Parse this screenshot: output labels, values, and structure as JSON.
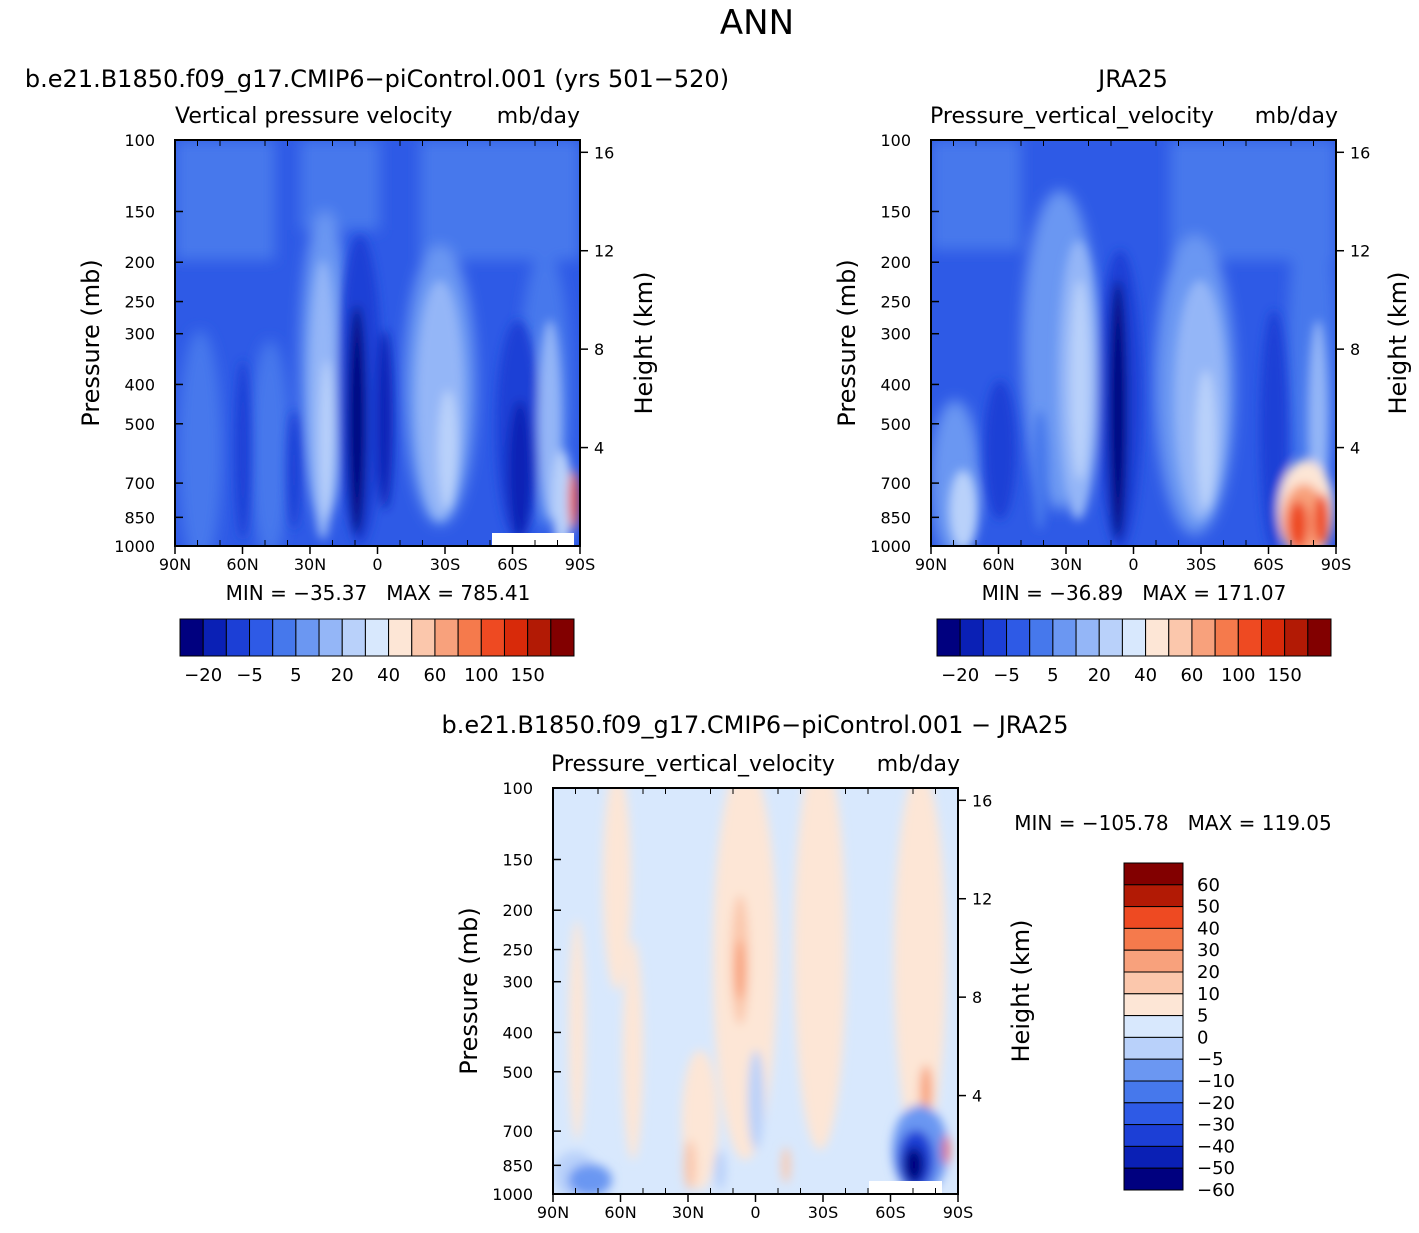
{
  "figure": {
    "title": "ANN",
    "palette_abs": [
      "#00007f",
      "#0a20b5",
      "#1c3fd6",
      "#2e5ae6",
      "#4678ec",
      "#6b97f2",
      "#94b6f7",
      "#b9d1fa",
      "#d8e8fd",
      "#fde6d6",
      "#fbc7ac",
      "#f8a17c",
      "#f57a4c",
      "#ee4a22",
      "#d82a0a",
      "#b21a05",
      "#820000"
    ],
    "palette_diff": [
      "#00007f",
      "#0a20b5",
      "#1c3fd6",
      "#2e5ae6",
      "#4678ec",
      "#6b97f2",
      "#b9d1fa",
      "#d8e8fd",
      "#fde6d6",
      "#fbc7ac",
      "#f8a17c",
      "#f57a4c",
      "#ee4a22",
      "#b21a05",
      "#820000"
    ]
  },
  "chart_data": [
    {
      "type": "heatmap",
      "title": "b.e21.B1850.f09_g17.CMIP6−piControl.001 (yrs 501−520)",
      "left_subtitle": "Vertical pressure velocity",
      "units": "mb/day",
      "xlabel": "",
      "ylabel": "Pressure (mb)",
      "ylabel_right": "Height (km)",
      "x_ticks": [
        "90N",
        "60N",
        "30N",
        "0",
        "30S",
        "60S",
        "90S"
      ],
      "y_ticks": [
        "100",
        "150",
        "200",
        "250",
        "300",
        "400",
        "500",
        "700",
        "850",
        "1000"
      ],
      "y2_ticks": [
        "16",
        "12",
        "8",
        "4"
      ],
      "stats": "MIN = −35.37   MAX = 785.41",
      "colorbar_labels": [
        "−20",
        "−5",
        "5",
        "20",
        "40",
        "60",
        "100",
        "150"
      ]
    },
    {
      "type": "heatmap",
      "title": "JRA25",
      "left_subtitle": "Pressure_vertical_velocity",
      "units": "mb/day",
      "xlabel": "",
      "ylabel": "Pressure (mb)",
      "ylabel_right": "Height (km)",
      "x_ticks": [
        "90N",
        "60N",
        "30N",
        "0",
        "30S",
        "60S",
        "90S"
      ],
      "y_ticks": [
        "100",
        "150",
        "200",
        "250",
        "300",
        "400",
        "500",
        "700",
        "850",
        "1000"
      ],
      "y2_ticks": [
        "16",
        "12",
        "8",
        "4"
      ],
      "stats": "MIN = −36.89   MAX = 171.07",
      "colorbar_labels": [
        "−20",
        "−5",
        "5",
        "20",
        "40",
        "60",
        "100",
        "150"
      ]
    },
    {
      "type": "heatmap",
      "title": "b.e21.B1850.f09_g17.CMIP6−piControl.001 − JRA25",
      "left_subtitle": "Pressure_vertical_velocity",
      "units": "mb/day",
      "xlabel": "",
      "ylabel": "Pressure (mb)",
      "ylabel_right": "Height (km)",
      "x_ticks": [
        "90N",
        "60N",
        "30N",
        "0",
        "30S",
        "60S",
        "90S"
      ],
      "y_ticks": [
        "100",
        "150",
        "200",
        "250",
        "300",
        "400",
        "500",
        "700",
        "850",
        "1000"
      ],
      "y2_ticks": [
        "16",
        "12",
        "8",
        "4"
      ],
      "stats": "MIN = −105.78   MAX = 119.05",
      "colorbar_labels": [
        "60",
        "50",
        "40",
        "30",
        "20",
        "10",
        "5",
        "0",
        "−5",
        "−10",
        "−20",
        "−30",
        "−40",
        "−50",
        "−60"
      ]
    }
  ]
}
